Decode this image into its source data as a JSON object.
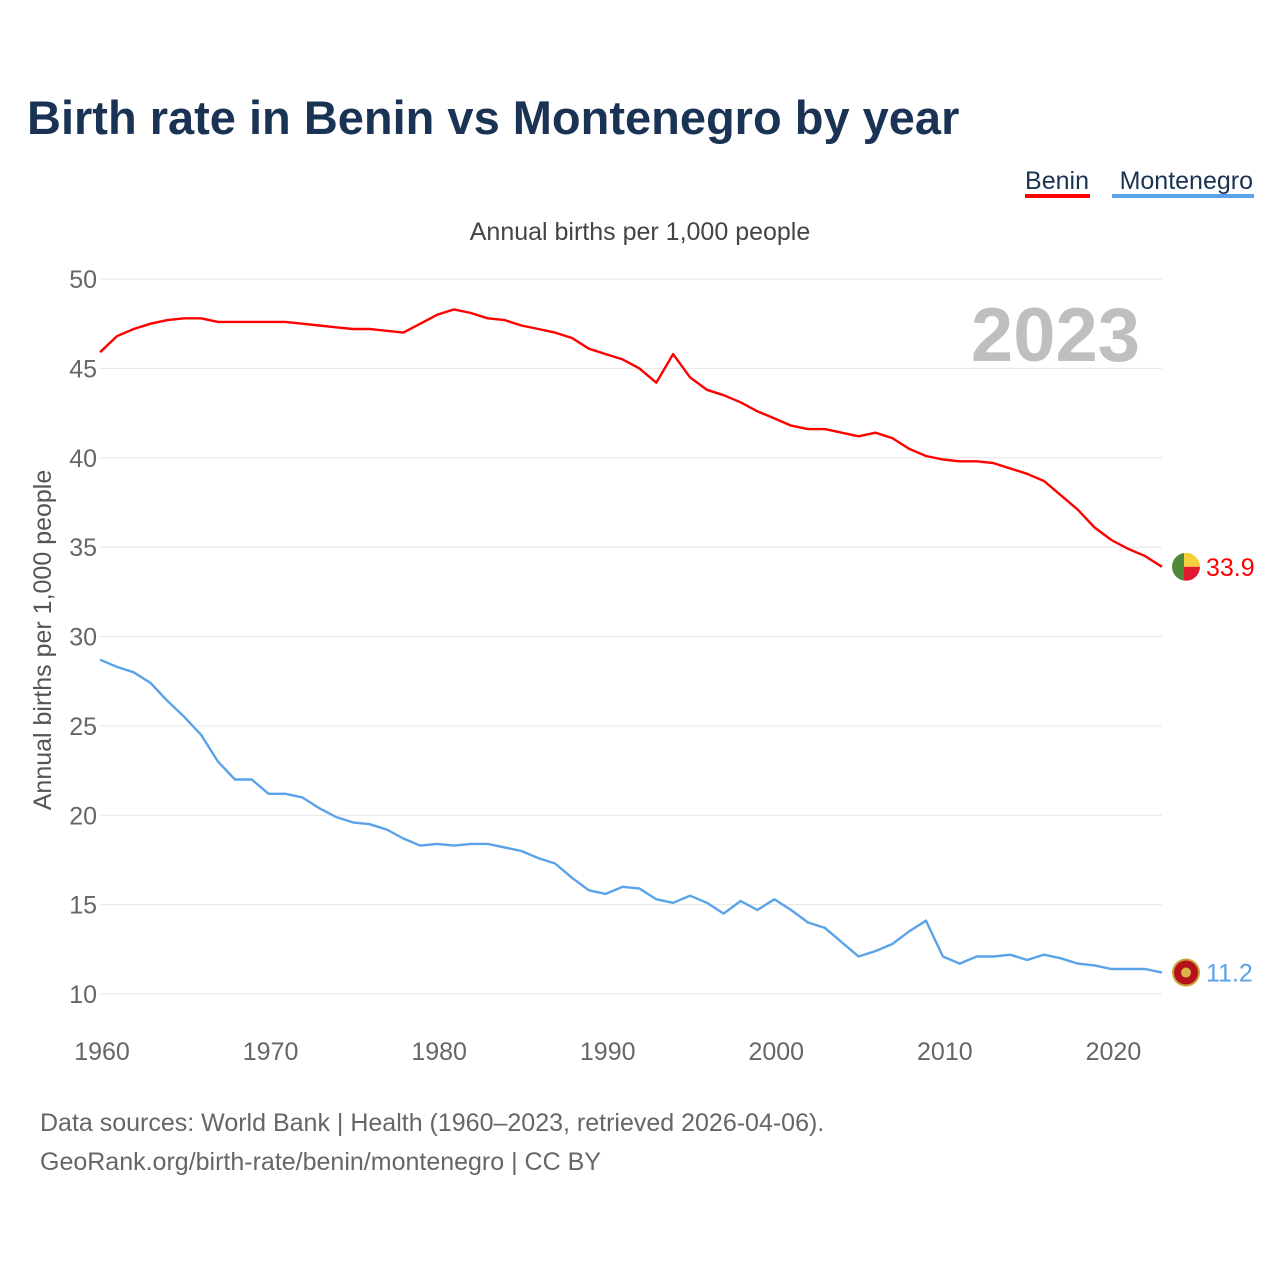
{
  "title": "Birth rate in Benin vs Montenegro by year",
  "subtitle": "Annual births per 1,000 people",
  "year_watermark": "2023",
  "legend": [
    {
      "label": "Benin",
      "color": "#ff0000"
    },
    {
      "label": "Montenegro",
      "color": "#5aa3e8"
    }
  ],
  "source_lines": [
    "Data sources: World Bank | Health (1960–2023, retrieved 2026-04-06).",
    "GeoRank.org/birth-rate/benin/montenegro | CC BY"
  ],
  "colors": {
    "title": "#1a3354",
    "axis_text": "#666666",
    "grid": "#e6e6e6",
    "watermark": "#bfbfbf"
  },
  "chart_data": {
    "type": "line",
    "title": "Birth rate in Benin vs Montenegro by year",
    "ylabel": "Annual births per 1,000 people",
    "xlabel": "",
    "xlim": [
      1960,
      2023
    ],
    "ylim": [
      10,
      50
    ],
    "x_ticks": [
      1960,
      1970,
      1980,
      1990,
      2000,
      2010,
      2020
    ],
    "y_ticks": [
      10,
      15,
      20,
      25,
      30,
      35,
      40,
      45,
      50
    ],
    "grid": true,
    "legend_position": "top-right",
    "x": [
      1960,
      1961,
      1962,
      1963,
      1964,
      1965,
      1966,
      1967,
      1968,
      1969,
      1970,
      1971,
      1972,
      1973,
      1974,
      1975,
      1976,
      1977,
      1978,
      1979,
      1980,
      1981,
      1982,
      1983,
      1984,
      1985,
      1986,
      1987,
      1988,
      1989,
      1990,
      1991,
      1992,
      1993,
      1994,
      1995,
      1996,
      1997,
      1998,
      1999,
      2000,
      2001,
      2002,
      2003,
      2004,
      2005,
      2006,
      2007,
      2008,
      2009,
      2010,
      2011,
      2012,
      2013,
      2014,
      2015,
      2016,
      2017,
      2018,
      2019,
      2020,
      2021,
      2022,
      2023
    ],
    "series": [
      {
        "name": "Benin",
        "color": "#ff0000",
        "end_label": "33.9",
        "values": [
          45.9,
          46.8,
          47.2,
          47.5,
          47.7,
          47.8,
          47.8,
          47.6,
          47.6,
          47.6,
          47.6,
          47.6,
          47.5,
          47.4,
          47.3,
          47.2,
          47.2,
          47.1,
          47.0,
          47.5,
          48.0,
          48.3,
          48.1,
          47.8,
          47.7,
          47.4,
          47.2,
          47.0,
          46.7,
          46.1,
          45.8,
          45.5,
          45.0,
          44.2,
          45.8,
          44.5,
          43.8,
          43.5,
          43.1,
          42.6,
          42.2,
          41.8,
          41.6,
          41.6,
          41.4,
          41.2,
          41.4,
          41.1,
          40.5,
          40.1,
          39.9,
          39.8,
          39.8,
          39.7,
          39.4,
          39.1,
          38.7,
          37.9,
          37.1,
          36.1,
          35.4,
          34.9,
          34.5,
          33.9
        ]
      },
      {
        "name": "Montenegro",
        "color": "#5aa3e8",
        "end_label": "11.2",
        "values": [
          28.7,
          28.3,
          28.0,
          27.4,
          26.4,
          25.5,
          24.5,
          23.0,
          22.0,
          22.0,
          21.2,
          21.2,
          21.0,
          20.4,
          19.9,
          19.6,
          19.5,
          19.2,
          18.7,
          18.3,
          18.4,
          18.3,
          18.4,
          18.4,
          18.2,
          18.0,
          17.6,
          17.3,
          16.5,
          15.8,
          15.6,
          16.0,
          15.9,
          15.3,
          15.1,
          15.5,
          15.1,
          14.5,
          15.2,
          14.7,
          15.3,
          14.7,
          14.0,
          13.7,
          12.9,
          12.1,
          12.4,
          12.8,
          13.5,
          14.1,
          12.1,
          11.7,
          12.1,
          12.1,
          12.2,
          11.9,
          12.2,
          12.0,
          11.7,
          11.6,
          11.4,
          11.4,
          11.4,
          11.2
        ]
      }
    ]
  }
}
